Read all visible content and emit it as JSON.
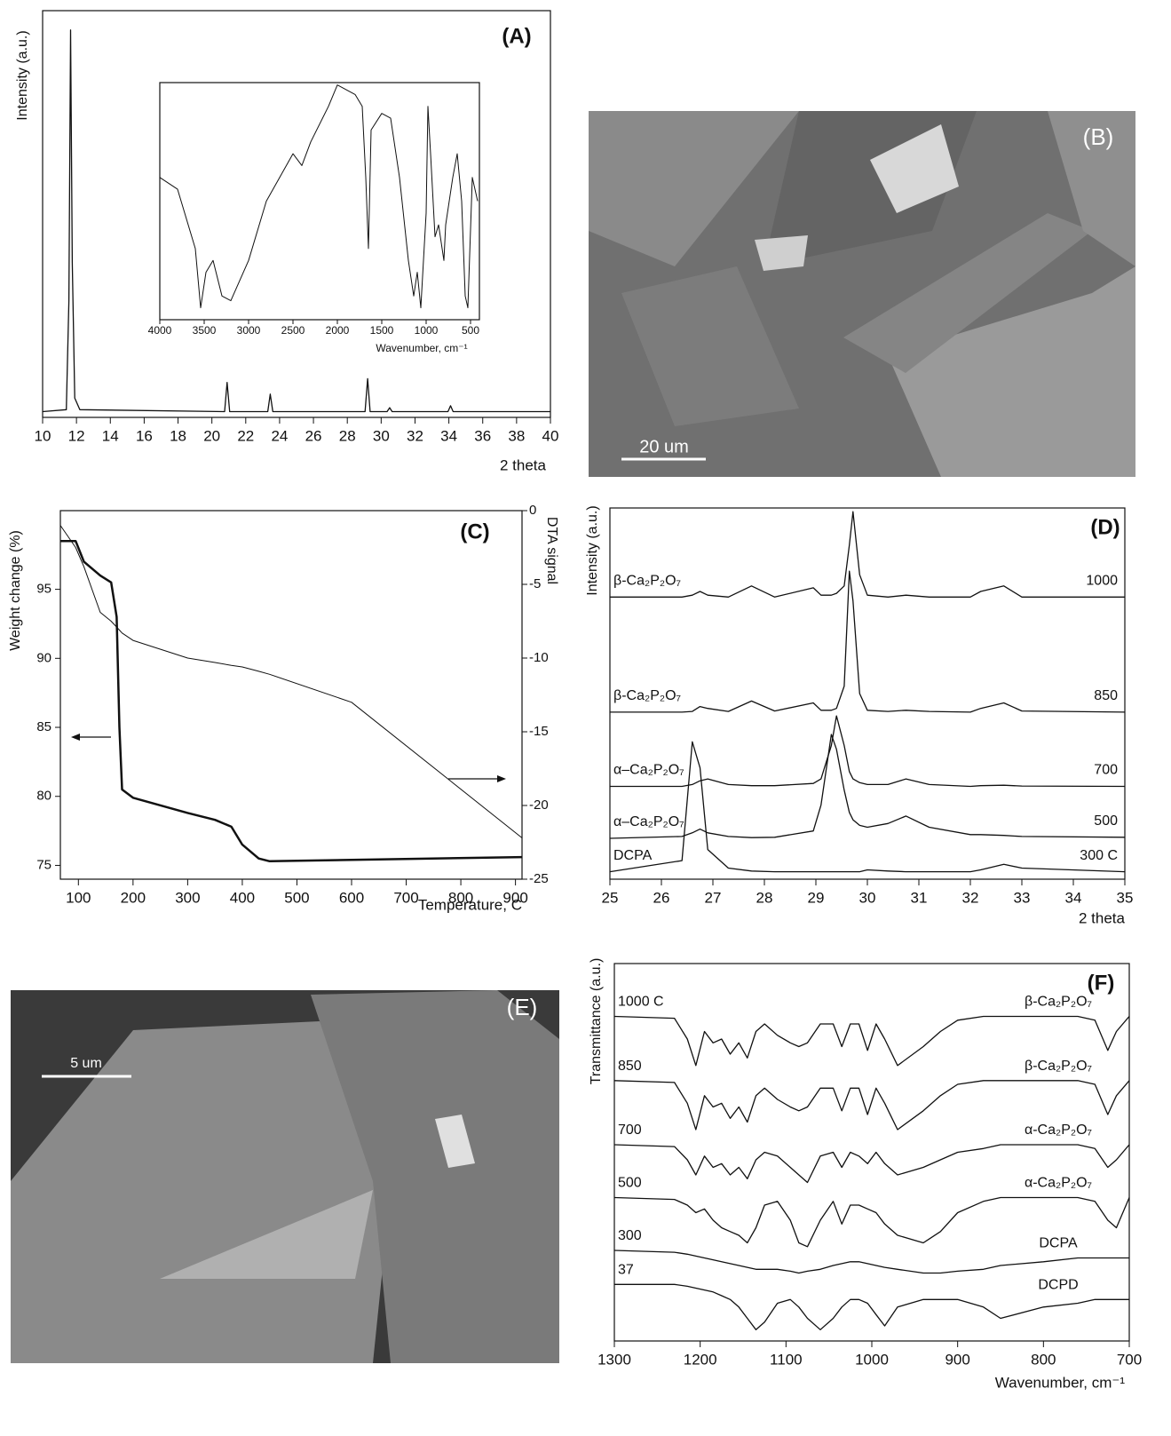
{
  "chart_data": [
    {
      "type": "line",
      "panel_label": "(A)",
      "y_label": "Intensity (a.u.)",
      "x_label": "2 theta",
      "xlim": [
        10,
        40
      ],
      "xticks": [
        10,
        12,
        14,
        16,
        18,
        20,
        22,
        24,
        26,
        28,
        30,
        32,
        34,
        36,
        38,
        40
      ],
      "ylim": [
        0,
        105
      ],
      "x": [
        10,
        11.4,
        11.55,
        11.65,
        11.75,
        11.9,
        12.2,
        20.75,
        20.9,
        21.05,
        23.3,
        23.45,
        23.6,
        29.05,
        29.2,
        29.35,
        30.35,
        30.5,
        30.65,
        33.95,
        34.1,
        34.25,
        36.8,
        40
      ],
      "series": [
        {
          "color": "#111111",
          "values": [
            1.5,
            2,
            30,
            100,
            40,
            5,
            2,
            1.5,
            9,
            1.5,
            1.5,
            6,
            1.5,
            1.5,
            10,
            1.5,
            1.5,
            2.5,
            1.5,
            1.5,
            3,
            1.5,
            1.5,
            1.5
          ]
        }
      ],
      "inset": {
        "type": "line",
        "x_label": "Wavenumber, cm⁻¹",
        "xlim": [
          4000,
          400
        ],
        "xticks": [
          4000,
          3500,
          3000,
          2500,
          2000,
          1500,
          1000,
          500
        ],
        "ylim": [
          0,
          100
        ],
        "x": [
          4000,
          3800,
          3600,
          3540,
          3480,
          3400,
          3300,
          3200,
          3000,
          2800,
          2500,
          2400,
          2300,
          2100,
          2000,
          1800,
          1720,
          1680,
          1650,
          1620,
          1500,
          1400,
          1300,
          1200,
          1140,
          1100,
          1060,
          1000,
          980,
          950,
          900,
          860,
          800,
          780,
          700,
          650,
          600,
          560,
          530,
          480,
          420
        ],
        "series": [
          {
            "color": "#111111",
            "values": [
              60,
              55,
              30,
              5,
              20,
              25,
              10,
              8,
              25,
              50,
              70,
              65,
              75,
              90,
              99,
              95,
              90,
              60,
              30,
              80,
              87,
              85,
              60,
              25,
              10,
              20,
              5,
              45,
              90,
              70,
              35,
              40,
              25,
              40,
              60,
              70,
              50,
              10,
              5,
              60,
              50
            ]
          }
        ]
      }
    },
    {
      "type": "line",
      "panel_label": "(C)",
      "y_label": "Weight change (%)",
      "y2_label": "DTA signal",
      "x_label": "Temperature, C",
      "xlim": [
        67,
        912
      ],
      "xticks": [
        100,
        200,
        300,
        400,
        500,
        600,
        700,
        800,
        900
      ],
      "ylim": [
        74,
        100.7
      ],
      "yticks": [
        75,
        80,
        85,
        90,
        95
      ],
      "y2lim": [
        -25,
        0
      ],
      "y2ticks": [
        0,
        -5,
        -10,
        -15,
        -20,
        -25
      ],
      "x": [
        67,
        95,
        110,
        140,
        160,
        170,
        175,
        180,
        200,
        300,
        350,
        380,
        400,
        430,
        450,
        600,
        912
      ],
      "series": [
        {
          "color": "#111111",
          "values": [
            98.5,
            98.5,
            97,
            96,
            95.5,
            93,
            85,
            80.5,
            79.9,
            78.8,
            78.3,
            77.8,
            76.5,
            75.5,
            75.3,
            75.4,
            75.6
          ]
        },
        {
          "color": "#111111",
          "axis": "y2",
          "values": [
            -1,
            -2.5,
            -3.8,
            -6.9,
            -7.5,
            -7.9,
            -8.1,
            -8.3,
            -8.8,
            -10,
            -10.3,
            -10.5,
            -10.6,
            -10.9,
            -11.1,
            -13,
            -22.2
          ]
        }
      ]
    },
    {
      "type": "line",
      "panel_label": "(D)",
      "y_label": "Intensity (a.u.)",
      "x_label": "2 theta",
      "xlim": [
        25,
        35
      ],
      "xticks": [
        25,
        26,
        27,
        28,
        29,
        30,
        31,
        32,
        33,
        34,
        35
      ],
      "ylim": [
        0,
        100
      ],
      "x": [
        25,
        26.4,
        26.6,
        26.75,
        26.9,
        27.3,
        27.75,
        28.2,
        28.95,
        29.1,
        29.3,
        29.4,
        29.55,
        29.65,
        29.72,
        29.85,
        30.0,
        30.4,
        30.75,
        31.2,
        32.0,
        32.2,
        32.65,
        33.0,
        35
      ],
      "series": [
        {
          "name": "1000",
          "label": "β-Ca₂P₂O₇",
          "color": "#111111",
          "values": [
            76,
            76,
            76.5,
            77.5,
            76.5,
            76,
            79,
            76,
            78.5,
            76.5,
            76.5,
            77,
            79,
            90,
            99,
            82,
            76.5,
            76,
            76.5,
            76,
            76,
            77.5,
            79,
            76,
            76
          ]
        },
        {
          "name": "850",
          "label": "β-Ca₂P₂O₇",
          "color": "#111111",
          "values": [
            45,
            45,
            45.2,
            46.5,
            46,
            45.2,
            48,
            45.3,
            47.5,
            45.5,
            45.5,
            46,
            52,
            83,
            75,
            50,
            45.5,
            45.2,
            45.5,
            45.2,
            45,
            46,
            47.5,
            45.3,
            45
          ]
        },
        {
          "name": "700",
          "label": "α–Ca₂P₂O₇",
          "color": "#111111",
          "values": [
            25,
            25,
            25.5,
            26.5,
            27,
            25.5,
            25.2,
            25.2,
            25.8,
            27,
            36,
            44,
            36,
            29,
            27,
            26,
            25.5,
            25.5,
            27,
            25.5,
            25,
            25.2,
            25.3,
            25.1,
            25
          ]
        },
        {
          "name": "500",
          "label": "α–Ca₂P₂O₇",
          "color": "#111111",
          "values": [
            11,
            11.5,
            12.5,
            13.5,
            12.5,
            11.5,
            11.2,
            11.3,
            13,
            20,
            39,
            35,
            24,
            18,
            16,
            14.5,
            14,
            15,
            17,
            14,
            12,
            12,
            11.8,
            11.5,
            11.3
          ]
        },
        {
          "name": "300 C",
          "label": "DCPA",
          "color": "#111111",
          "values": [
            2,
            5,
            37,
            30,
            8,
            3,
            2.2,
            2,
            2,
            2,
            2,
            2,
            2,
            2,
            2,
            2,
            2.5,
            2.2,
            2,
            2,
            2,
            2.5,
            4,
            3,
            2
          ]
        }
      ]
    },
    {
      "type": "line",
      "panel_label": "(F)",
      "y_label": "Transmittance (a.u.)",
      "x_label": "Wavenumber, cm⁻¹",
      "xlim": [
        1300,
        700
      ],
      "xticks": [
        1300,
        1200,
        1100,
        1000,
        900,
        800,
        700
      ],
      "ylim": [
        0,
        100
      ],
      "x": [
        1300,
        1230,
        1215,
        1205,
        1195,
        1185,
        1175,
        1165,
        1155,
        1145,
        1135,
        1125,
        1110,
        1095,
        1085,
        1075,
        1060,
        1045,
        1035,
        1025,
        1015,
        1005,
        995,
        985,
        970,
        940,
        920,
        900,
        870,
        850,
        800,
        760,
        740,
        725,
        715,
        700
      ],
      "series": [
        {
          "name": "1000 C",
          "label": "β-Ca₂P₂O₇",
          "color": "#111111",
          "values": [
            86,
            85.5,
            80,
            73,
            82,
            79,
            80,
            76,
            79,
            75,
            82,
            84,
            81,
            79,
            78,
            79,
            84,
            84,
            78,
            84,
            84,
            77,
            84,
            80,
            73,
            78,
            82,
            85,
            86,
            86,
            86,
            86,
            85,
            77,
            82,
            86
          ]
        },
        {
          "name": "850",
          "label": "β-Ca₂P₂O₇",
          "color": "#111111",
          "values": [
            69,
            68.5,
            63,
            56,
            65,
            62,
            63,
            59,
            62,
            58,
            65,
            67,
            64,
            62,
            61,
            62,
            67,
            67,
            61,
            67,
            67,
            60,
            67,
            63,
            56,
            61,
            65,
            68,
            69,
            69,
            69,
            69,
            68,
            60,
            65,
            69
          ]
        },
        {
          "name": "700",
          "label": "α-Ca₂P₂O₇",
          "color": "#111111",
          "values": [
            52,
            51.5,
            48,
            44,
            49,
            46,
            47,
            44,
            46,
            43,
            48,
            50,
            49,
            46,
            44,
            42,
            49,
            50,
            46,
            50,
            49,
            47,
            50,
            47,
            44,
            46,
            48,
            50,
            51,
            52,
            52,
            52,
            51,
            46,
            48,
            52
          ]
        },
        {
          "name": "500",
          "label": "α-Ca₂P₂O₇",
          "color": "#111111",
          "values": [
            38,
            37.5,
            36,
            34,
            35,
            32,
            30,
            29,
            28,
            26,
            30,
            36,
            37,
            32,
            26,
            25,
            32,
            37,
            31,
            36,
            36,
            35,
            34,
            31,
            28,
            26,
            29,
            34,
            37,
            38,
            38,
            38,
            37,
            32,
            30,
            38
          ]
        },
        {
          "name": "300",
          "label": "DCPA",
          "color": "#111111",
          "values": [
            24,
            23.5,
            23,
            22.5,
            22,
            21.5,
            21,
            20.5,
            20,
            19.5,
            19,
            19,
            19,
            18.5,
            18,
            18.5,
            19,
            20,
            20.5,
            21,
            21,
            20.5,
            20,
            19.5,
            19,
            18,
            18,
            18.5,
            19,
            20,
            21,
            22,
            22,
            22,
            22,
            22
          ]
        },
        {
          "name": "37",
          "label": "DCPD",
          "color": "#111111",
          "values": [
            15,
            15,
            14.5,
            14,
            13.5,
            13,
            12,
            11,
            9,
            6,
            3,
            5,
            10,
            11,
            9,
            6,
            3,
            6,
            9,
            11,
            11,
            10,
            7,
            4,
            9,
            11,
            11,
            11,
            9,
            6,
            9,
            10,
            11,
            11,
            11,
            11
          ]
        }
      ]
    }
  ],
  "images": [
    {
      "label": "(B)",
      "scale_bar": "20 um"
    },
    {
      "label": "(E)",
      "scale_bar": "5 um"
    }
  ]
}
